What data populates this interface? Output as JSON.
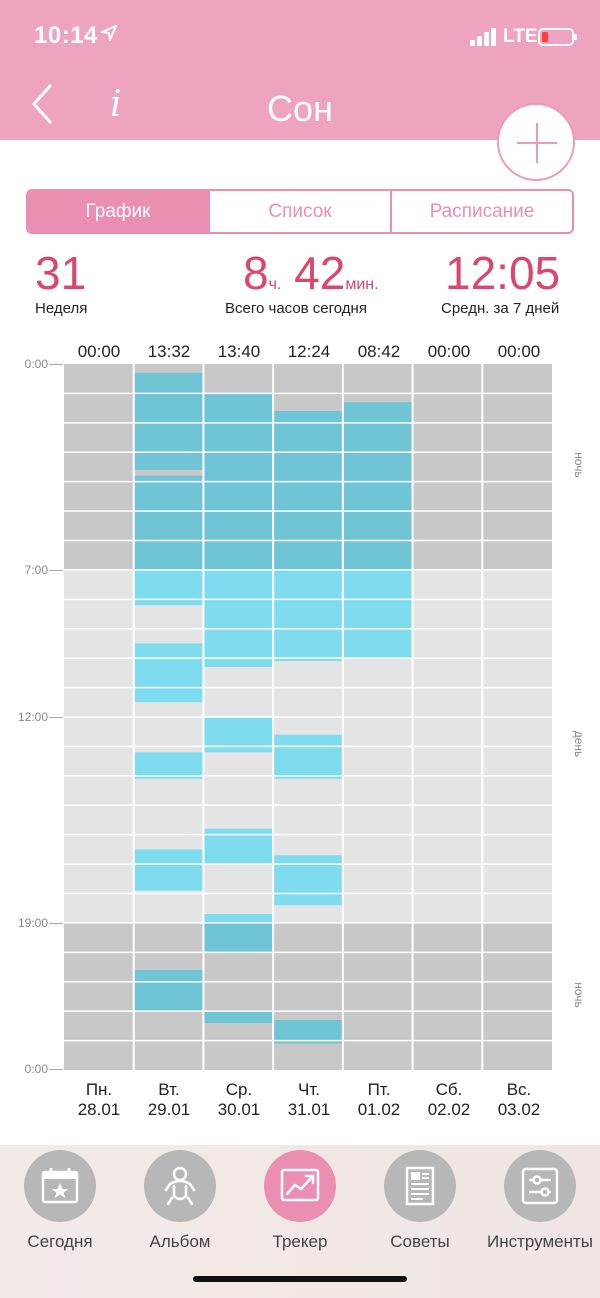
{
  "status_bar": {
    "time": "10:14",
    "network": "LTE"
  },
  "header": {
    "title": "Сон",
    "info_label": "i"
  },
  "segments": [
    {
      "label": "График",
      "active": true
    },
    {
      "label": "Список",
      "active": false
    },
    {
      "label": "Расписание",
      "active": false
    }
  ],
  "stats": {
    "week_value": "31",
    "week_label": "Неделя",
    "hours_value": "8",
    "hours_unit": "ч.",
    "minutes_value": "42",
    "minutes_unit": "мин.",
    "total_label": "Всего часов сегодня",
    "avg_value": "12:05",
    "avg_label": "Средн. за 7 дней"
  },
  "chart_data": {
    "type": "timeline",
    "y_axis_ticks": [
      "0:00",
      "7:00",
      "12:00",
      "19:00",
      "0:00"
    ],
    "period_labels": [
      "ночь",
      "день",
      "ночь"
    ],
    "night_ranges": [
      [
        0,
        7
      ],
      [
        19,
        24
      ]
    ],
    "days": [
      {
        "day": "Пн.",
        "date": "28.01",
        "total": "00:00",
        "sleep": []
      },
      {
        "day": "Вт.",
        "date": "29.01",
        "total": "13:32",
        "sleep": [
          [
            0.3,
            3.6
          ],
          [
            3.8,
            8.2
          ],
          [
            9.5,
            11.5
          ],
          [
            13.2,
            14.1
          ],
          [
            16.5,
            17.9
          ],
          [
            20.6,
            22.0
          ]
        ]
      },
      {
        "day": "Ср.",
        "date": "30.01",
        "total": "13:40",
        "sleep": [
          [
            1.0,
            10.3
          ],
          [
            12.0,
            13.2
          ],
          [
            15.8,
            17.0
          ],
          [
            18.7,
            20.0
          ],
          [
            22.0,
            22.4
          ]
        ]
      },
      {
        "day": "Чт.",
        "date": "31.01",
        "total": "12:24",
        "sleep": [
          [
            1.6,
            10.1
          ],
          [
            12.6,
            14.1
          ],
          [
            16.7,
            18.4
          ],
          [
            22.3,
            23.1
          ]
        ]
      },
      {
        "day": "Пт.",
        "date": "01.02",
        "total": "08:42",
        "sleep": [
          [
            1.3,
            10.0
          ]
        ]
      },
      {
        "day": "Сб.",
        "date": "02.02",
        "total": "00:00",
        "sleep": []
      },
      {
        "day": "Вс.",
        "date": "03.02",
        "total": "00:00",
        "sleep": []
      }
    ],
    "colors": {
      "night_bg": "#c8c8c8",
      "day_bg": "#e4e4e4",
      "sleep_night": "#6fc4d6",
      "sleep_day": "#7edcee"
    }
  },
  "tabs": [
    {
      "label": "Сегодня",
      "icon": "calendar-star-icon",
      "active": false
    },
    {
      "label": "Альбом",
      "icon": "baby-icon",
      "active": false
    },
    {
      "label": "Трекер",
      "icon": "chart-trend-icon",
      "active": true
    },
    {
      "label": "Советы",
      "icon": "document-icon",
      "active": false
    },
    {
      "label": "Инструменты",
      "icon": "sliders-icon",
      "active": false
    }
  ],
  "colors": {
    "accent": "#ea8fb1",
    "header": "#eea3bf",
    "stat": "#d94670"
  }
}
